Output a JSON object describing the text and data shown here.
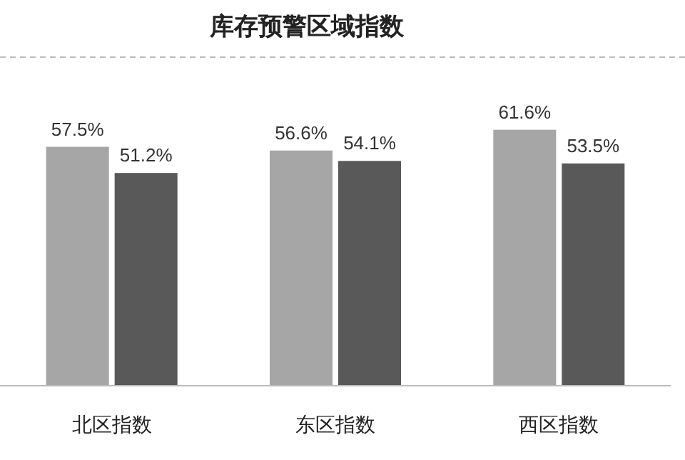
{
  "chart_data": {
    "type": "bar",
    "title": "库存预警区域指数",
    "categories": [
      "北区指数",
      "东区指数",
      "西区指数"
    ],
    "series": [
      {
        "color": "#a6a6a6",
        "values": [
          57.5,
          56.6,
          61.6
        ],
        "value_labels": [
          "57.5%",
          "56.6%",
          "61.6%"
        ]
      },
      {
        "color": "#595959",
        "values": [
          51.2,
          54.1,
          53.5
        ],
        "value_labels": [
          "51.2%",
          "54.1%",
          "53.5%"
        ]
      }
    ]
  }
}
